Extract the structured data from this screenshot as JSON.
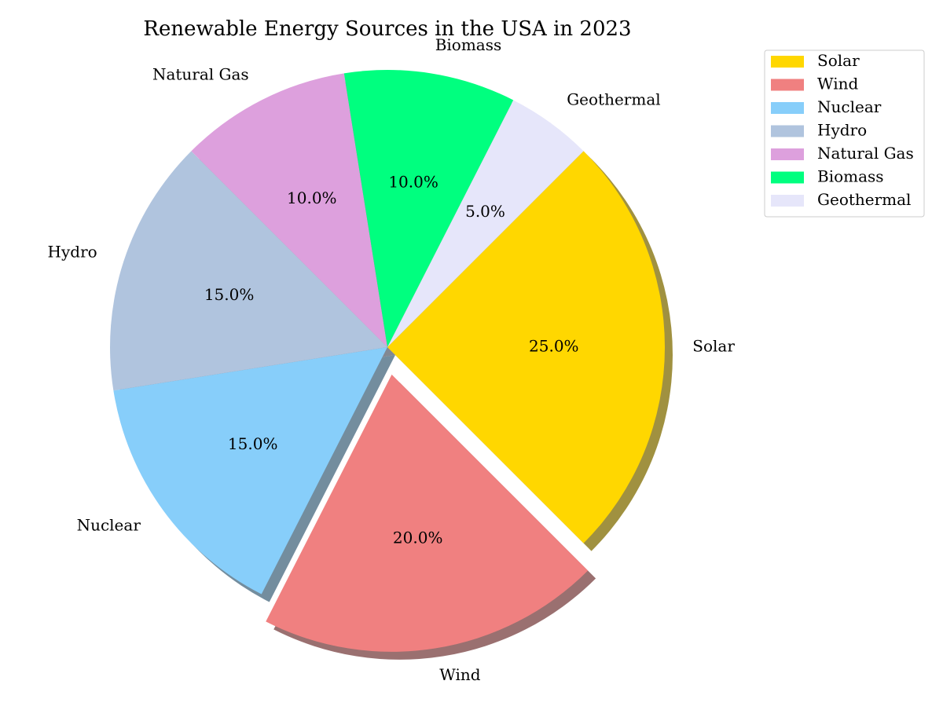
{
  "chart_data": {
    "type": "pie",
    "title": "Renewable Energy Sources in the USA in 2023",
    "categories": [
      "Solar",
      "Wind",
      "Nuclear",
      "Hydro",
      "Natural Gas",
      "Biomass",
      "Geothermal"
    ],
    "values": [
      25,
      20,
      15,
      15,
      10,
      10,
      5
    ],
    "value_labels": [
      "25.0%",
      "20.0%",
      "15.0%",
      "15.0%",
      "10.0%",
      "10.0%",
      "5.0%"
    ],
    "colors": [
      "#FFD700",
      "#F08080",
      "#87CEFA",
      "#B0C4DE",
      "#DDA0DD",
      "#00FF7F",
      "#E6E6FA"
    ],
    "start_angle_deg": 45,
    "direction": "clockwise",
    "exploded": [
      "Wind"
    ],
    "shadow": true,
    "legend": {
      "position": "top-right",
      "entries": [
        "Solar",
        "Wind",
        "Nuclear",
        "Hydro",
        "Natural Gas",
        "Biomass",
        "Geothermal"
      ]
    }
  }
}
